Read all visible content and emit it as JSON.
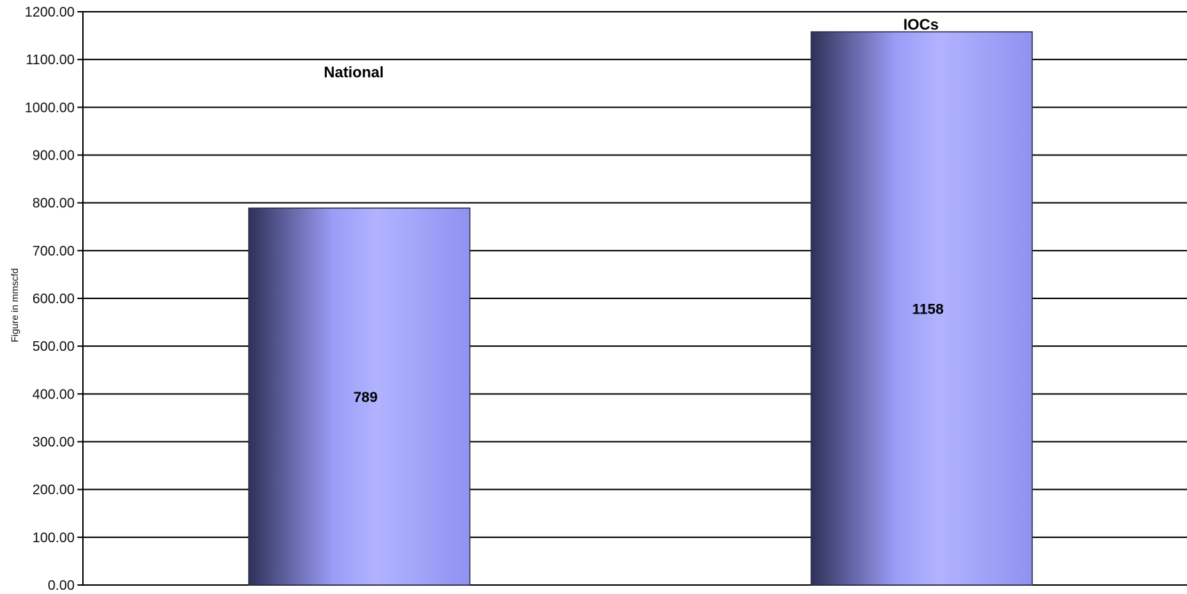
{
  "chart_data": {
    "type": "bar",
    "categories": [
      "National",
      "IOCs"
    ],
    "values": [
      789,
      1158
    ],
    "value_labels": [
      "789",
      "1158"
    ],
    "title": "",
    "xlabel": "",
    "ylabel": "Figure in mmscfd",
    "ylim": [
      0,
      1200
    ],
    "yticks": [
      "0.00",
      "100.00",
      "200.00",
      "300.00",
      "400.00",
      "500.00",
      "600.00",
      "700.00",
      "800.00",
      "900.00",
      "1000.00",
      "1100.00",
      "1200.00"
    ],
    "grid": true,
    "legend": "none",
    "colors": {
      "bar_dark": "#2f3158",
      "bar_mid": "#9a9cf6",
      "bar_light": "#b1b3ff",
      "bar_edge": "#8f92f0",
      "grid": "#000000"
    }
  }
}
